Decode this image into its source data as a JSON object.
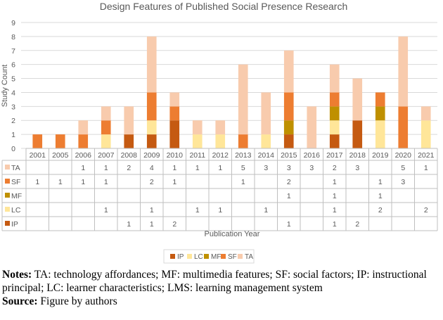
{
  "chart_data": {
    "type": "bar",
    "stacked": true,
    "title": "Design Features of Published Social Presence Research",
    "xlabel": "Publication Year",
    "ylabel": "Study Count",
    "ylim": [
      0,
      9
    ],
    "yticks": [
      "0",
      "1",
      "2",
      "3",
      "4",
      "5",
      "6",
      "7",
      "8",
      "9"
    ],
    "grid": true,
    "legend": "bottom",
    "categories": [
      "2001",
      "2005",
      "2006",
      "2007",
      "2008",
      "2009",
      "2010",
      "2011",
      "2012",
      "2013",
      "2014",
      "2015",
      "2016",
      "2017",
      "2018",
      "2019",
      "2020",
      "2021"
    ],
    "series": [
      {
        "name": "IP",
        "color": "#C55A11",
        "values": [
          null,
          null,
          null,
          null,
          1,
          1,
          2,
          null,
          null,
          null,
          null,
          1,
          null,
          1,
          2,
          null,
          null,
          null
        ]
      },
      {
        "name": "LC",
        "color": "#FFE699",
        "values": [
          null,
          null,
          null,
          1,
          null,
          1,
          null,
          1,
          1,
          null,
          1,
          null,
          null,
          1,
          null,
          2,
          null,
          2
        ]
      },
      {
        "name": "MF",
        "color": "#BF9000",
        "values": [
          null,
          null,
          null,
          null,
          null,
          null,
          null,
          null,
          null,
          null,
          null,
          1,
          null,
          1,
          null,
          1,
          null,
          null
        ]
      },
      {
        "name": "SF",
        "color": "#ED7D31",
        "values": [
          1,
          1,
          1,
          1,
          null,
          2,
          1,
          null,
          null,
          1,
          null,
          2,
          null,
          1,
          null,
          1,
          3,
          null
        ]
      },
      {
        "name": "TA",
        "color": "#F8CBAD",
        "values": [
          null,
          null,
          1,
          1,
          2,
          4,
          1,
          1,
          1,
          5,
          3,
          3,
          3,
          2,
          3,
          null,
          5,
          1
        ]
      }
    ],
    "table_row_order": [
      "TA",
      "SF",
      "MF",
      "LC",
      "IP"
    ]
  },
  "notes": {
    "label": "Notes:",
    "text": " TA: technology affordances; MF: multimedia features; SF: social factors; IP: instructional principal; LC: learner characteristics; LMS: learning management system",
    "source_label": "Source:",
    "source_text": " Figure by authors"
  }
}
